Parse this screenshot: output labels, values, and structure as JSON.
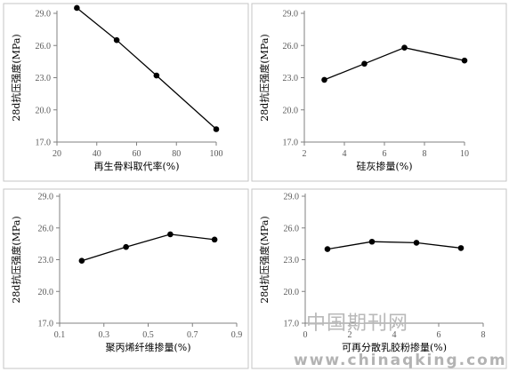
{
  "chart_data": [
    {
      "type": "line",
      "xlabel": "再生骨料取代率(%)",
      "ylabel": "28d抗压强度(MPa)",
      "xlim": [
        20,
        100
      ],
      "ylim": [
        17.0,
        29.0
      ],
      "x_ticks": [
        "20",
        "40",
        "60",
        "80",
        "100"
      ],
      "y_ticks": [
        "17.0",
        "20.0",
        "23.0",
        "26.0",
        "29.0"
      ],
      "series": [
        {
          "x": [
            30,
            50,
            70,
            100
          ],
          "values": [
            29.5,
            26.5,
            23.2,
            18.2
          ]
        }
      ],
      "grid": false,
      "legend": "none"
    },
    {
      "type": "line",
      "xlabel": "硅灰掺量(%)",
      "ylabel": "28d抗压强度(MPa)",
      "xlim": [
        2,
        10
      ],
      "ylim": [
        17.0,
        29.0
      ],
      "x_ticks": [
        "2",
        "4",
        "6",
        "8",
        "10"
      ],
      "y_ticks": [
        "17.0",
        "20.0",
        "23.0",
        "26.0",
        "29.0"
      ],
      "series": [
        {
          "x": [
            3,
            5,
            7,
            10
          ],
          "values": [
            22.8,
            24.3,
            25.8,
            24.6
          ]
        }
      ],
      "grid": false,
      "legend": "none"
    },
    {
      "type": "line",
      "xlabel": "聚丙烯纤维掺量(%)",
      "ylabel": "28d抗压强度(MPa)",
      "xlim": [
        0.1,
        0.9
      ],
      "ylim": [
        17.0,
        29.0
      ],
      "x_ticks": [
        "0.1",
        "0.3",
        "0.5",
        "0.7",
        "0.9"
      ],
      "y_ticks": [
        "17.0",
        "20.0",
        "23.0",
        "26.0",
        "29.0"
      ],
      "series": [
        {
          "x": [
            0.2,
            0.4,
            0.6,
            0.8
          ],
          "values": [
            22.9,
            24.2,
            25.4,
            24.9
          ]
        }
      ],
      "grid": false,
      "legend": "none"
    },
    {
      "type": "line",
      "xlabel": "可再分散乳胶粉掺量(%)",
      "ylabel": "28d抗压强度(MPa)",
      "xlim": [
        0,
        8
      ],
      "ylim": [
        17.0,
        29.0
      ],
      "x_ticks": [
        "0",
        "2",
        "4",
        "6",
        "8"
      ],
      "y_ticks": [
        "17.0",
        "20.0",
        "23.0",
        "26.0",
        "29.0"
      ],
      "series": [
        {
          "x": [
            1,
            3,
            5,
            7
          ],
          "values": [
            24.0,
            24.7,
            24.6,
            24.1
          ]
        }
      ],
      "grid": false,
      "legend": "none"
    }
  ],
  "watermark": {
    "text_cn": "中国期刊网",
    "url": "www.chinaqking.com"
  },
  "colors": {
    "line": "#000000",
    "marker": "#000000",
    "axis": "#808080",
    "tick_text": "#595959",
    "frame": "#c6c6c6",
    "watermark": "#b5b5b5"
  }
}
